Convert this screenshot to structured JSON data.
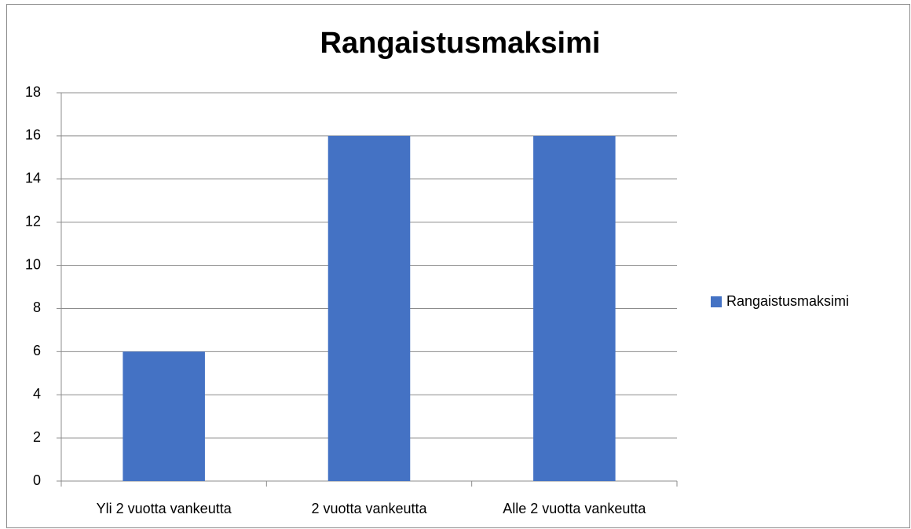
{
  "chart_data": {
    "type": "bar",
    "title": "Rangaistusmaksimi",
    "categories": [
      "Yli 2 vuotta vankeutta",
      "2 vuotta vankeutta",
      "Alle 2 vuotta vankeutta"
    ],
    "series": [
      {
        "name": "Rangaistusmaksimi",
        "color": "#4472c4",
        "values": [
          6,
          16,
          16
        ]
      }
    ],
    "ylim": [
      0,
      18
    ],
    "yticks": [
      0,
      2,
      4,
      6,
      8,
      10,
      12,
      14,
      16,
      18
    ],
    "grid": true,
    "legend": "right"
  }
}
